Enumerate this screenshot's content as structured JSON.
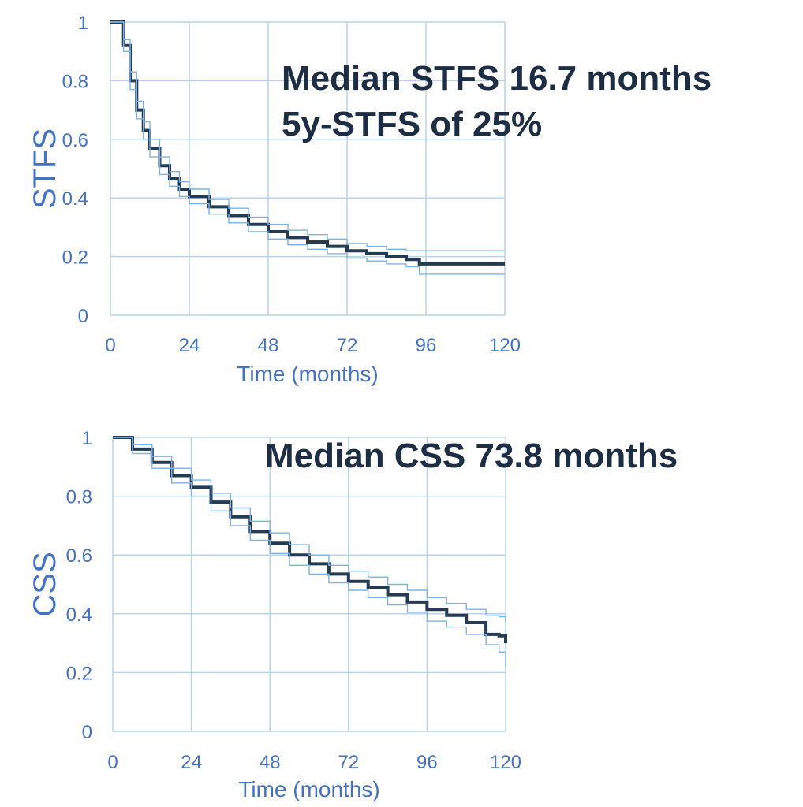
{
  "chart_data": [
    {
      "type": "line",
      "ylabel": "STFS",
      "xlabel": "Time (months)",
      "annotations": [
        "Median STFS 16.7 months",
        "5y-STFS of 25%"
      ],
      "xlim": [
        0,
        120
      ],
      "ylim": [
        0,
        1
      ],
      "xticks": [
        "0",
        "24",
        "48",
        "72",
        "96",
        "120"
      ],
      "yticks": [
        "0",
        "0.2",
        "0.4",
        "0.6",
        "0.8",
        "1"
      ],
      "x": [
        0,
        3,
        4,
        6,
        8,
        10,
        12,
        15,
        18,
        21,
        24,
        30,
        36,
        42,
        48,
        54,
        60,
        66,
        72,
        78,
        84,
        90,
        94,
        96,
        105,
        120
      ],
      "series": [
        {
          "role": "estimate",
          "values": [
            1.0,
            1.0,
            0.92,
            0.8,
            0.7,
            0.63,
            0.57,
            0.51,
            0.465,
            0.43,
            0.405,
            0.37,
            0.34,
            0.31,
            0.285,
            0.265,
            0.25,
            0.235,
            0.22,
            0.21,
            0.2,
            0.19,
            0.175,
            0.175,
            0.175,
            0.175
          ]
        },
        {
          "role": "upper-ci",
          "values": [
            1.0,
            1.0,
            0.94,
            0.83,
            0.73,
            0.66,
            0.6,
            0.54,
            0.49,
            0.455,
            0.43,
            0.395,
            0.365,
            0.335,
            0.31,
            0.29,
            0.275,
            0.26,
            0.245,
            0.235,
            0.225,
            0.22,
            0.22,
            0.22,
            0.22,
            0.22
          ]
        },
        {
          "role": "lower-ci",
          "values": [
            1.0,
            1.0,
            0.9,
            0.77,
            0.67,
            0.6,
            0.54,
            0.48,
            0.44,
            0.405,
            0.38,
            0.345,
            0.315,
            0.285,
            0.26,
            0.24,
            0.225,
            0.21,
            0.195,
            0.185,
            0.175,
            0.165,
            0.14,
            0.14,
            0.14,
            0.14
          ]
        }
      ]
    },
    {
      "type": "line",
      "ylabel": "CSS",
      "xlabel": "Time (months)",
      "annotations": [
        "Median CSS 73.8 months"
      ],
      "xlim": [
        0,
        120
      ],
      "ylim": [
        0,
        1
      ],
      "xticks": [
        "0",
        "24",
        "48",
        "72",
        "96",
        "120"
      ],
      "yticks": [
        "0",
        "0.2",
        "0.4",
        "0.6",
        "0.8",
        "1"
      ],
      "x": [
        0,
        6,
        12,
        18,
        24,
        30,
        36,
        42,
        48,
        54,
        60,
        66,
        72,
        78,
        84,
        90,
        96,
        102,
        108,
        114,
        118,
        120
      ],
      "series": [
        {
          "role": "estimate",
          "values": [
            1.0,
            0.96,
            0.915,
            0.87,
            0.83,
            0.78,
            0.73,
            0.68,
            0.64,
            0.6,
            0.57,
            0.535,
            0.51,
            0.49,
            0.465,
            0.44,
            0.415,
            0.395,
            0.37,
            0.33,
            0.325,
            0.3
          ]
        },
        {
          "role": "upper-ci",
          "values": [
            1.0,
            0.975,
            0.935,
            0.895,
            0.855,
            0.81,
            0.76,
            0.715,
            0.675,
            0.635,
            0.6,
            0.565,
            0.545,
            0.525,
            0.5,
            0.48,
            0.455,
            0.435,
            0.415,
            0.395,
            0.39,
            0.37
          ]
        },
        {
          "role": "lower-ci",
          "values": [
            1.0,
            0.945,
            0.895,
            0.845,
            0.8,
            0.75,
            0.7,
            0.65,
            0.605,
            0.565,
            0.535,
            0.505,
            0.48,
            0.455,
            0.43,
            0.405,
            0.375,
            0.355,
            0.33,
            0.295,
            0.27,
            0.22
          ]
        }
      ]
    }
  ]
}
